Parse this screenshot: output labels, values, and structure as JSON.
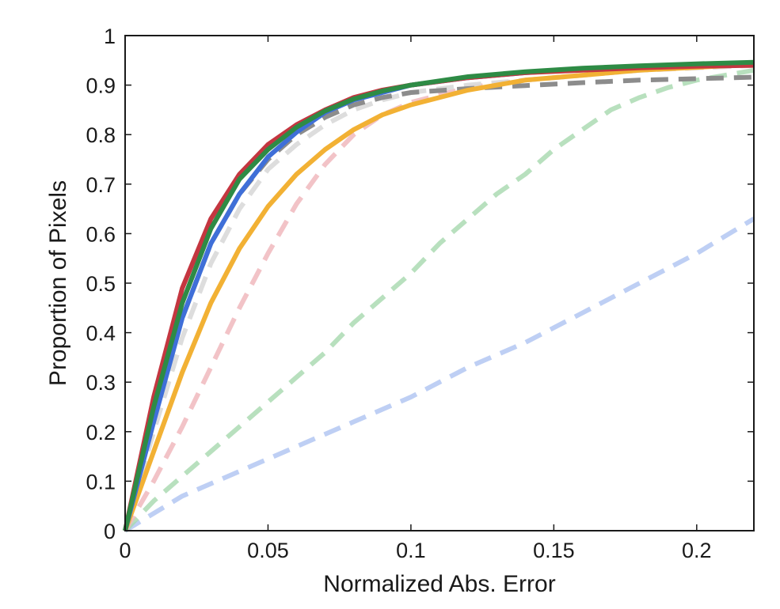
{
  "chart_data": {
    "type": "line",
    "title": "",
    "xlabel": "Normalized Abs. Error",
    "ylabel": "Proportion of Pixels",
    "xlim": [
      0,
      0.22
    ],
    "ylim": [
      0,
      1
    ],
    "grid": false,
    "legend": "none",
    "x_ticks": [
      {
        "value": 0,
        "label": "0"
      },
      {
        "value": 0.05,
        "label": "0.05"
      },
      {
        "value": 0.1,
        "label": "0.1"
      },
      {
        "value": 0.15,
        "label": "0.15"
      },
      {
        "value": 0.2,
        "label": "0.2"
      }
    ],
    "y_ticks": [
      {
        "value": 0,
        "label": "0"
      },
      {
        "value": 0.1,
        "label": "0.1"
      },
      {
        "value": 0.2,
        "label": "0.2"
      },
      {
        "value": 0.3,
        "label": "0.3"
      },
      {
        "value": 0.4,
        "label": "0.4"
      },
      {
        "value": 0.5,
        "label": "0.5"
      },
      {
        "value": 0.6,
        "label": "0.6"
      },
      {
        "value": 0.7,
        "label": "0.7"
      },
      {
        "value": 0.8,
        "label": "0.8"
      },
      {
        "value": 0.9,
        "label": "0.9"
      },
      {
        "value": 1,
        "label": "1"
      }
    ],
    "series": [
      {
        "color": "#a8bff0",
        "style": "dashed",
        "opacity": 0.75,
        "x": [
          0,
          0.02,
          0.04,
          0.06,
          0.08,
          0.1,
          0.12,
          0.14,
          0.16,
          0.18,
          0.2,
          0.22
        ],
        "y": [
          0,
          0.07,
          0.12,
          0.17,
          0.22,
          0.27,
          0.33,
          0.38,
          0.44,
          0.5,
          0.56,
          0.63
        ]
      },
      {
        "color": "#a6d8ae",
        "style": "dashed",
        "opacity": 0.8,
        "x": [
          0,
          0.01,
          0.02,
          0.03,
          0.04,
          0.05,
          0.06,
          0.07,
          0.08,
          0.09,
          0.1,
          0.11,
          0.12,
          0.13,
          0.14,
          0.15,
          0.16,
          0.17,
          0.18,
          0.19,
          0.2,
          0.21,
          0.22
        ],
        "y": [
          0,
          0.06,
          0.11,
          0.16,
          0.21,
          0.26,
          0.31,
          0.36,
          0.42,
          0.47,
          0.52,
          0.58,
          0.63,
          0.68,
          0.72,
          0.77,
          0.81,
          0.85,
          0.875,
          0.895,
          0.91,
          0.92,
          0.93
        ]
      },
      {
        "color": "#f0b8bd",
        "style": "dashed",
        "opacity": 0.85,
        "x": [
          0,
          0.01,
          0.02,
          0.03,
          0.04,
          0.05,
          0.06,
          0.07,
          0.08,
          0.09,
          0.1,
          0.12,
          0.14,
          0.16,
          0.18,
          0.2,
          0.22
        ],
        "y": [
          0,
          0.1,
          0.21,
          0.33,
          0.45,
          0.56,
          0.66,
          0.74,
          0.8,
          0.84,
          0.865,
          0.895,
          0.91,
          0.92,
          0.93,
          0.935,
          0.94
        ]
      },
      {
        "color": "#d9d9d9",
        "style": "dashed",
        "opacity": 0.9,
        "x": [
          0,
          0.01,
          0.02,
          0.03,
          0.04,
          0.05,
          0.06,
          0.07,
          0.08,
          0.09,
          0.1,
          0.12,
          0.14,
          0.16,
          0.18,
          0.2,
          0.22
        ],
        "y": [
          0,
          0.2,
          0.39,
          0.54,
          0.65,
          0.73,
          0.78,
          0.82,
          0.85,
          0.87,
          0.885,
          0.9,
          0.91,
          0.92,
          0.93,
          0.935,
          0.94
        ]
      },
      {
        "color": "#8c8c8c",
        "style": "dashed",
        "opacity": 1,
        "x": [
          0,
          0.01,
          0.02,
          0.03,
          0.04,
          0.05,
          0.06,
          0.07,
          0.08,
          0.09,
          0.1,
          0.12,
          0.14,
          0.16,
          0.18,
          0.2,
          0.22
        ],
        "y": [
          0,
          0.23,
          0.43,
          0.58,
          0.68,
          0.75,
          0.8,
          0.835,
          0.86,
          0.875,
          0.885,
          0.893,
          0.899,
          0.905,
          0.91,
          0.913,
          0.916
        ]
      },
      {
        "color": "#f2b134",
        "style": "solid",
        "opacity": 1,
        "x": [
          0,
          0.01,
          0.02,
          0.03,
          0.04,
          0.05,
          0.06,
          0.07,
          0.08,
          0.09,
          0.1,
          0.12,
          0.14,
          0.16,
          0.18,
          0.2,
          0.22
        ],
        "y": [
          0,
          0.16,
          0.32,
          0.46,
          0.57,
          0.655,
          0.72,
          0.77,
          0.81,
          0.84,
          0.86,
          0.89,
          0.91,
          0.92,
          0.93,
          0.936,
          0.942
        ]
      },
      {
        "color": "#3f6fd8",
        "style": "solid",
        "opacity": 1,
        "x": [
          0,
          0.01,
          0.02,
          0.03,
          0.04,
          0.05,
          0.06,
          0.07,
          0.08,
          0.09,
          0.1,
          0.12,
          0.14,
          0.16,
          0.18,
          0.2,
          0.22
        ],
        "y": [
          0,
          0.22,
          0.43,
          0.58,
          0.68,
          0.755,
          0.805,
          0.845,
          0.87,
          0.885,
          0.9,
          0.915,
          0.925,
          0.932,
          0.937,
          0.94,
          0.943
        ]
      },
      {
        "color": "#c43640",
        "style": "solid",
        "opacity": 1,
        "x": [
          0,
          0.01,
          0.02,
          0.03,
          0.04,
          0.05,
          0.06,
          0.07,
          0.08,
          0.09,
          0.1,
          0.12,
          0.14,
          0.16,
          0.18,
          0.2,
          0.22
        ],
        "y": [
          0,
          0.27,
          0.49,
          0.63,
          0.72,
          0.78,
          0.82,
          0.85,
          0.875,
          0.89,
          0.9,
          0.915,
          0.925,
          0.93,
          0.935,
          0.938,
          0.94
        ]
      },
      {
        "color": "#2e8b45",
        "style": "solid",
        "opacity": 1,
        "x": [
          0,
          0.01,
          0.02,
          0.03,
          0.04,
          0.05,
          0.06,
          0.07,
          0.08,
          0.09,
          0.1,
          0.12,
          0.14,
          0.16,
          0.18,
          0.2,
          0.22
        ],
        "y": [
          0,
          0.25,
          0.46,
          0.61,
          0.71,
          0.77,
          0.815,
          0.848,
          0.872,
          0.888,
          0.9,
          0.917,
          0.927,
          0.934,
          0.939,
          0.943,
          0.946
        ]
      }
    ]
  }
}
